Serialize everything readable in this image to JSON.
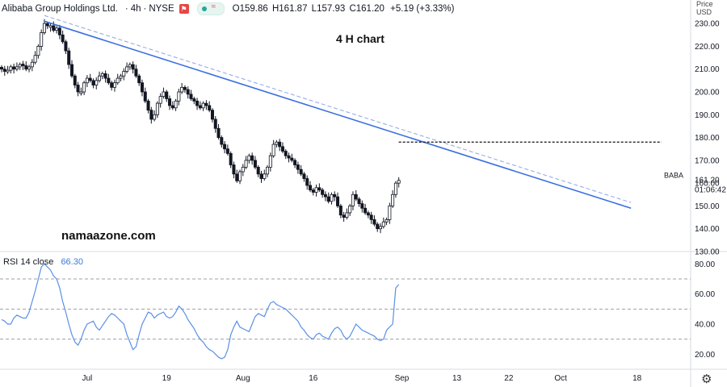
{
  "header": {
    "symbol": "Alibaba Group Holdings Ltd.",
    "interval": "4h",
    "exchange": "NYSE",
    "open": "O159.86",
    "high": "H161.87",
    "low": "L157.93",
    "close": "C161.20",
    "change": "+5.19 (+3.33%)"
  },
  "annotations": {
    "chart_label": "4 H chart",
    "watermark": "namaazone.com"
  },
  "price_scale": {
    "currency_top": "Price",
    "currency": "USD",
    "ticker_tag": "BABA",
    "last_price": "161.20",
    "countdown": "01:06:42"
  },
  "rsi_header": {
    "label": "RSI 14 close",
    "value": "66.30"
  },
  "colors": {
    "trendline": "#3a6fe0",
    "channel_dashed": "#8fa5e6",
    "resistance": "#111111",
    "rsi_line": "#5b8fe6",
    "candle_up": "#ffffff",
    "candle_down": "#131722"
  },
  "chart_data": [
    {
      "type": "candlestick",
      "symbol": "BABA",
      "ylim": [
        130,
        235
      ],
      "y_ticks": [
        "130.00",
        "140.00",
        "150.00",
        "160.00",
        "170.00",
        "180.00",
        "190.00",
        "200.00",
        "210.00",
        "220.00",
        "230.00"
      ],
      "x_tick_labels": [
        "Jul",
        "19",
        "Aug",
        "16",
        "Sep",
        "13",
        "22",
        "Oct",
        "18"
      ],
      "x_tick_index": [
        28,
        54,
        79,
        102,
        131,
        149,
        166,
        183,
        208
      ],
      "x_range": [
        0,
        225
      ],
      "close": [
        210,
        209,
        209.5,
        211,
        210,
        211,
        212,
        211.5,
        210,
        211,
        213,
        216,
        220,
        226,
        230,
        229,
        229,
        227,
        228,
        225,
        222,
        218,
        212,
        207,
        203,
        200,
        200,
        204,
        206,
        205,
        203,
        205,
        207,
        208,
        206,
        204,
        202,
        204,
        206,
        207,
        209,
        211,
        212,
        210,
        207,
        204,
        200,
        196,
        192,
        188,
        190,
        195,
        198,
        200,
        197,
        194,
        193,
        196,
        200,
        202,
        201,
        199,
        197,
        196,
        194,
        193,
        195,
        194,
        192,
        188,
        184,
        180,
        177,
        175,
        173,
        168,
        164,
        161,
        165,
        167,
        170,
        172,
        170,
        167,
        164,
        162,
        164,
        167,
        172,
        177,
        178,
        176,
        174,
        172,
        171,
        170,
        168,
        166,
        164,
        162,
        159,
        157,
        156,
        158,
        157,
        155,
        154,
        152,
        155,
        154,
        150,
        146,
        145,
        147,
        150,
        155,
        153,
        151,
        149,
        147,
        146,
        144,
        142,
        140,
        141,
        143,
        144,
        150,
        155,
        160,
        161.2
      ],
      "trendline": {
        "from": [
          14,
          231
        ],
        "to": [
          206,
          149
        ]
      },
      "trendline_upper": {
        "from": [
          14,
          233.5
        ],
        "to": [
          206,
          151.5
        ]
      },
      "resistance_line": {
        "y": 178,
        "from_index": 130,
        "to_index": 216
      }
    },
    {
      "type": "line",
      "name": "RSI 14 close",
      "ylim": [
        10,
        85
      ],
      "y_ticks": [
        "20.00",
        "40.00",
        "60.00",
        "80.00"
      ],
      "levels": [
        70,
        50,
        30
      ],
      "values": [
        43,
        42,
        40,
        40,
        44,
        46,
        45,
        44,
        44,
        48,
        55,
        62,
        70,
        78,
        80,
        78,
        76,
        72,
        70,
        64,
        55,
        48,
        40,
        33,
        28,
        26,
        30,
        36,
        40,
        41,
        42,
        38,
        36,
        39,
        42,
        45,
        47,
        46,
        44,
        42,
        40,
        33,
        28,
        23,
        25,
        33,
        40,
        44,
        48,
        47,
        44,
        46,
        47,
        48,
        45,
        44,
        45,
        48,
        52,
        50,
        47,
        43,
        40,
        37,
        33,
        30,
        28,
        25,
        23,
        22,
        20,
        18,
        17,
        18,
        23,
        33,
        38,
        42,
        38,
        37,
        36,
        35,
        40,
        45,
        47,
        46,
        45,
        50,
        54,
        55,
        53,
        52,
        51,
        50,
        48,
        46,
        44,
        42,
        38,
        36,
        33,
        31,
        30,
        33,
        34,
        32,
        31,
        30,
        34,
        37,
        38,
        36,
        32,
        30,
        32,
        36,
        40,
        38,
        36,
        35,
        34,
        33,
        32,
        30,
        29,
        30,
        36,
        38,
        40,
        64,
        66.3
      ]
    }
  ]
}
